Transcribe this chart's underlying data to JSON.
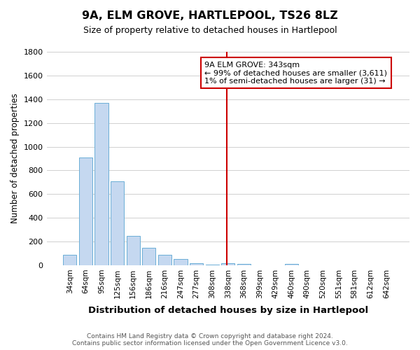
{
  "title": "9A, ELM GROVE, HARTLEPOOL, TS26 8LZ",
  "subtitle": "Size of property relative to detached houses in Hartlepool",
  "xlabel": "Distribution of detached houses by size in Hartlepool",
  "ylabel": "Number of detached properties",
  "categories": [
    "34sqm",
    "64sqm",
    "95sqm",
    "125sqm",
    "156sqm",
    "186sqm",
    "216sqm",
    "247sqm",
    "277sqm",
    "308sqm",
    "338sqm",
    "368sqm",
    "399sqm",
    "429sqm",
    "460sqm",
    "490sqm",
    "520sqm",
    "551sqm",
    "581sqm",
    "612sqm",
    "642sqm"
  ],
  "values": [
    90,
    910,
    1370,
    710,
    250,
    145,
    90,
    50,
    20,
    5,
    20,
    10,
    0,
    0,
    10,
    0,
    0,
    0,
    0,
    0,
    0
  ],
  "bar_color": "#c5d8f0",
  "bar_edge_color": "#6baed6",
  "vline_color": "#cc0000",
  "ylim": [
    0,
    1800
  ],
  "yticks": [
    0,
    200,
    400,
    600,
    800,
    1000,
    1200,
    1400,
    1600,
    1800
  ],
  "annotation_title": "9A ELM GROVE: 343sqm",
  "annotation_line1": "← 99% of detached houses are smaller (3,611)",
  "annotation_line2": "1% of semi-detached houses are larger (31) →",
  "annotation_box_color": "#ffffff",
  "annotation_box_edge": "#cc0000",
  "footer_line1": "Contains HM Land Registry data © Crown copyright and database right 2024.",
  "footer_line2": "Contains public sector information licensed under the Open Government Licence v3.0.",
  "background_color": "#ffffff",
  "grid_color": "#d0d0d0"
}
